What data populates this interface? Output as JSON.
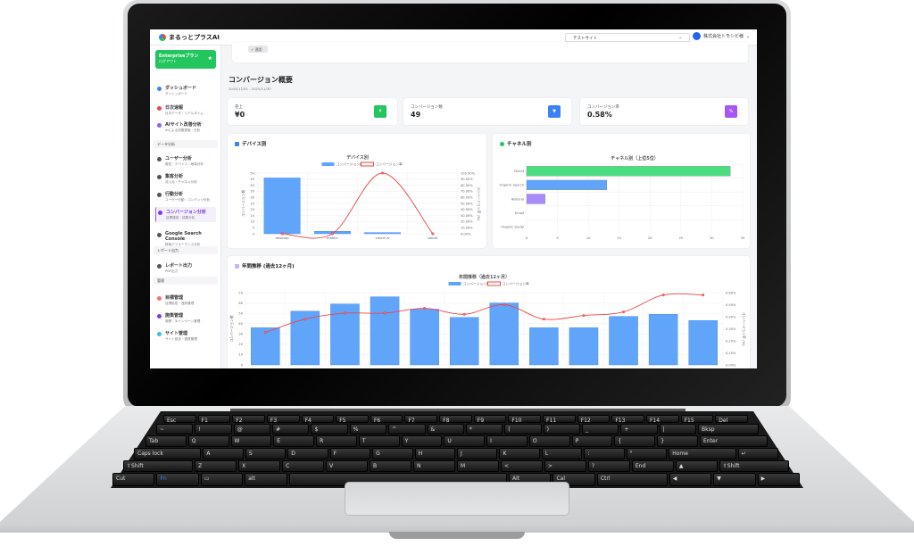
{
  "app": {
    "name": "まるっとプラスAI",
    "site_select": "テストサイト",
    "user": "株式会社トモシビ様"
  },
  "plan": {
    "name": "Enterpriseプラン",
    "sub": "ログアウト"
  },
  "sidebar": {
    "items": [
      {
        "title": "ダッシュボード",
        "sub": "ダッシュボード",
        "color": "#3b82f6"
      },
      {
        "title": "日次速報",
        "sub": "日次データ・リアルタイム",
        "color": "#ef4444"
      },
      {
        "title": "AIサイト改善分析",
        "sub": "AIによる改善提案・分析",
        "color": "#8b5cf6"
      },
      {
        "title": "ユーザー分析",
        "sub": "属性・デバイス・地域分析",
        "color": "#555"
      },
      {
        "title": "集客分析",
        "sub": "流入元・チャネル分析",
        "color": "#555"
      },
      {
        "title": "行動分析",
        "sub": "ユーザー行動・コンテンツ分析",
        "color": "#555"
      },
      {
        "title": "コンバージョン分析",
        "sub": "目標達成・成果分析",
        "color": "#7c3aed"
      },
      {
        "title": "Google Search Console",
        "sub": "検索パフォーマンス分析",
        "color": "#555"
      },
      {
        "title": "レポート出力",
        "sub": "PDF出力",
        "color": "#555"
      },
      {
        "title": "目標管理",
        "sub": "目標設定・進捗管理",
        "color": "#f87171"
      },
      {
        "title": "施策管理",
        "sub": "施策・キャンペーン管理",
        "color": "#7c3aed"
      },
      {
        "title": "サイト管理",
        "sub": "サイト設定・連携管理",
        "color": "#38bdf8"
      }
    ],
    "sections": [
      "データ分析",
      "レポート出力",
      "管理"
    ],
    "collapse": "›"
  },
  "filter": {
    "apply": "✓ 適用"
  },
  "page": {
    "title": "コンバージョン概要",
    "date_range": "2025/11/01 - 2025/11/30"
  },
  "kpis": [
    {
      "label": "売上",
      "value": "¥0",
      "icon": "¥",
      "color": "#22c55e"
    },
    {
      "label": "コンバージョン数",
      "value": "49",
      "icon": "trophy",
      "color": "#3b82f6"
    },
    {
      "label": "コンバージョン率",
      "value": "0.58%",
      "icon": "%",
      "color": "#a855f7"
    }
  ],
  "cards": {
    "device": "デバイス別",
    "channel": "チャネル別",
    "annual": "年間推移 (過去12ヶ月)"
  },
  "chart_data": [
    {
      "type": "bar",
      "title": "デバイス別",
      "categories": [
        "desktop",
        "mobile",
        "smart tv",
        "tablet"
      ],
      "series": [
        {
          "name": "コンバージョン数",
          "values": [
            46,
            2,
            1,
            0
          ],
          "color": "#60a5fa"
        },
        {
          "name": "コンバージョン率",
          "type": "line",
          "values": [
            0,
            0,
            100,
            0
          ],
          "color": "#ef4444"
        }
      ],
      "ylabel": "コンバージョン数",
      "y2label": "コンバージョン率 (%)",
      "ylim": [
        0,
        50
      ],
      "y2lim": [
        0,
        100
      ],
      "ystep": 5,
      "y2step": 10,
      "legend": "top",
      "grid": true
    },
    {
      "type": "bar",
      "orientation": "horizontal",
      "title": "チャネル別（上位5位）",
      "categories": [
        "Direct",
        "Organic Search",
        "Referral",
        "Email",
        "Organic Social"
      ],
      "values": [
        33,
        13,
        3,
        0,
        0
      ],
      "colors": [
        "#4ade80",
        "#60a5fa",
        "#a78bfa",
        "#f59e0b",
        "#f472b6"
      ],
      "xlim": [
        0,
        35
      ],
      "xstep": 5,
      "grid": true
    },
    {
      "type": "bar",
      "title": "年間推移（過去12ヶ月）",
      "series": [
        {
          "name": "コンバージョン数",
          "values": [
            36,
            52,
            59,
            66,
            54,
            46,
            60,
            36,
            36,
            47,
            49,
            43
          ],
          "color": "#60a5fa"
        },
        {
          "name": "コンバージョン率",
          "type": "line",
          "values": [
            0.27,
            0.38,
            0.43,
            0.43,
            0.47,
            0.42,
            0.5,
            0.38,
            0.41,
            0.44,
            0.58,
            0.58
          ],
          "color": "#ef4444"
        }
      ],
      "ylabel": "コンバージョン数",
      "y2label": "コンバージョン率 (%)",
      "ylim": [
        0,
        70
      ],
      "y2lim": [
        0,
        0.6
      ],
      "ystep": 10,
      "y2step": 0.1,
      "legend": "top",
      "grid": true
    }
  ],
  "keyboard": [
    [
      "Esc",
      "F1",
      "F2",
      "F3",
      "F4",
      "F5",
      "F6",
      "F7",
      "F8",
      "F9",
      "F10",
      "F11",
      "F12",
      "F13",
      "F14",
      "F15",
      "Del"
    ],
    [
      "~",
      "!",
      "@",
      "#",
      "$",
      "%",
      "^",
      "&",
      "*",
      "(",
      ")",
      "_",
      "+",
      "|",
      "Bksp"
    ],
    [
      "Tab",
      "Q",
      "W",
      "E",
      "R",
      "T",
      "Y",
      "U",
      "I",
      "O",
      "P",
      "{",
      "}",
      "Enter"
    ],
    [
      "Caps lock",
      "A",
      "S",
      "D",
      "F",
      "G",
      "H",
      "J",
      "K",
      "L",
      ":",
      "\"",
      "Home",
      "↵"
    ],
    [
      "⇧Shift",
      "Z",
      "X",
      "C",
      "V",
      "B",
      "N",
      "M",
      "<",
      ">",
      "?",
      "End",
      "▲",
      "⇧Shift"
    ],
    [
      "Cut",
      "Fn",
      "▭",
      "alt",
      " ",
      "Alt",
      "Cal",
      "Ctrl",
      "◀",
      "▼",
      "▶"
    ]
  ]
}
